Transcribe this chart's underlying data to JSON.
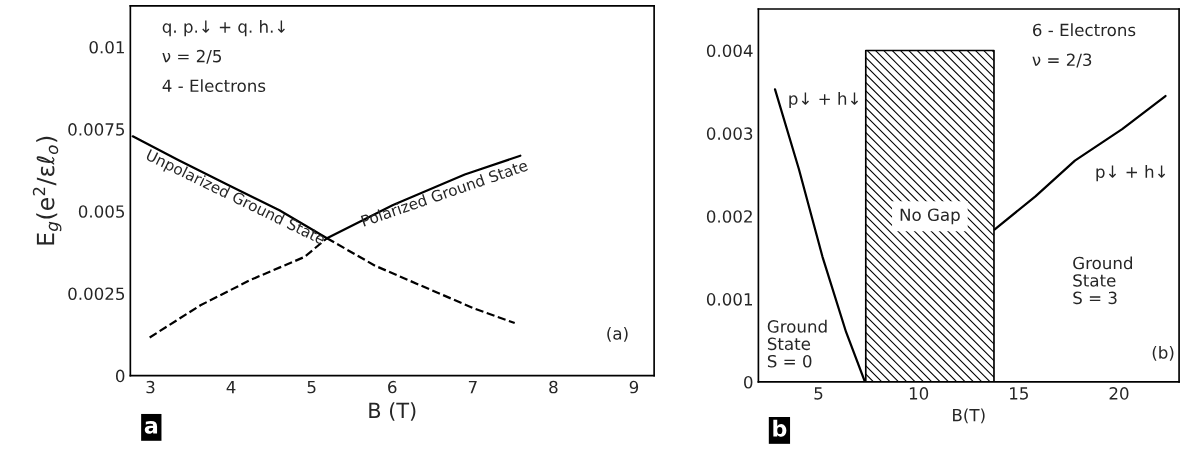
{
  "chart_data": [
    {
      "type": "line",
      "xlabel": "B (T)",
      "ylabel": "E$_{g}$(e$^{2}$/εℓ$_{o}$)",
      "xlim": [
        2.75,
        9.25
      ],
      "ylim": [
        0,
        0.01125
      ],
      "xticks": [
        3,
        4,
        5,
        6,
        7,
        8,
        9
      ],
      "yticks": [
        0,
        0.0025,
        0.005,
        0.0075,
        0.01
      ],
      "series": [
        {
          "color": "#000000",
          "line_style": "solid",
          "x": [
            2.78,
            3.35,
            3.97,
            4.6,
            5.19
          ],
          "values": [
            0.00728,
            0.00655,
            0.00579,
            0.00503,
            0.00418
          ]
        },
        {
          "color": "#000000",
          "line_style": "dashed",
          "x": [
            5.19,
            5.79,
            6.46,
            7.03,
            7.52
          ],
          "values": [
            0.00418,
            0.00334,
            0.00263,
            0.00203,
            0.0016
          ]
        },
        {
          "color": "#000000",
          "line_style": "dashed",
          "x": [
            2.99,
            3.62,
            4.24,
            4.91,
            5.19
          ],
          "values": [
            0.00116,
            0.00214,
            0.00291,
            0.00361,
            0.00418
          ]
        },
        {
          "color": "#000000",
          "line_style": "solid",
          "x": [
            5.19,
            6.01,
            6.9,
            7.59
          ],
          "values": [
            0.00418,
            0.00519,
            0.00612,
            0.00669
          ]
        }
      ],
      "annotations": [
        "q. p.↓ + q. h.↓",
        "ν = 2/5",
        "4 - Electrons",
        "(a)",
        "a",
        "Unpolarized Ground State",
        "Polarized Ground State"
      ]
    },
    {
      "type": "line",
      "xlabel": "B(T)",
      "xlim": [
        2,
        23
      ],
      "ylim": [
        0,
        0.0045
      ],
      "xticks": [
        5,
        10,
        15,
        20
      ],
      "yticks": [
        0,
        0.001,
        0.002,
        0.003,
        0.004
      ],
      "series": [
        {
          "color": "#000000",
          "line_style": "solid",
          "x": [
            2.83,
            4.02,
            5.2,
            6.38,
            7.32
          ],
          "values": [
            0.00353,
            0.00257,
            0.00151,
            0.0006,
            0
          ]
        },
        {
          "color": "#000000",
          "line_style": "solid",
          "x": [
            13.8,
            15.83,
            17.8,
            20.16,
            22.32
          ],
          "values": [
            0.00184,
            0.00224,
            0.00267,
            0.00305,
            0.00345
          ]
        }
      ],
      "bands": [
        {
          "axis": "x",
          "from": 7.36,
          "to": 13.76,
          "label": "No Gap"
        }
      ],
      "annotations": [
        "6 - Electrons",
        "ν = 2/3",
        "Ground\nState\nS = 0",
        "Ground\nState\nS = 3",
        "(b)",
        "b",
        "p↓ + h↓",
        "p↓ + h↓"
      ]
    }
  ]
}
